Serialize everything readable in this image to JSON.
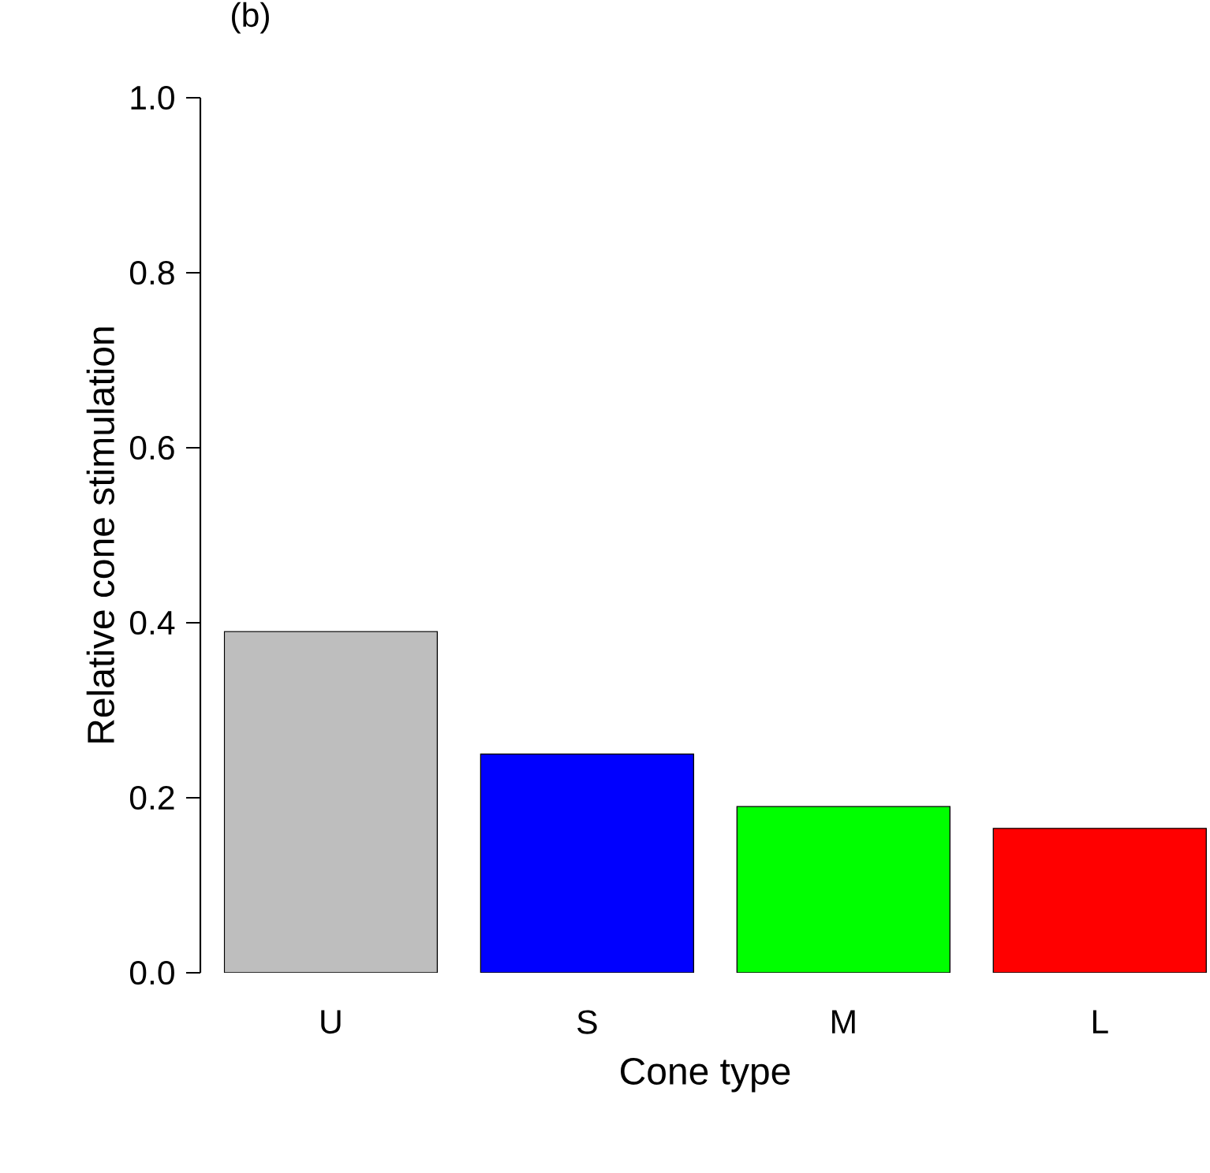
{
  "chart_data": {
    "type": "bar",
    "title": "(b)",
    "xlabel": "Cone type",
    "ylabel": "Relative cone stimulation",
    "categories": [
      "U",
      "S",
      "M",
      "L"
    ],
    "values": [
      0.39,
      0.25,
      0.19,
      0.165
    ],
    "colors": [
      "#bebebe",
      "#0000ff",
      "#00ff00",
      "#ff0000"
    ],
    "ylim": [
      0,
      1
    ],
    "yticks": [
      {
        "value": 0,
        "label": "0.0"
      },
      {
        "value": 0.2,
        "label": "0.2"
      },
      {
        "value": 0.4,
        "label": "0.4"
      },
      {
        "value": 0.6,
        "label": "0.6"
      },
      {
        "value": 0.8,
        "label": "0.8"
      },
      {
        "value": 1,
        "label": "1.0"
      }
    ],
    "grid": false
  }
}
